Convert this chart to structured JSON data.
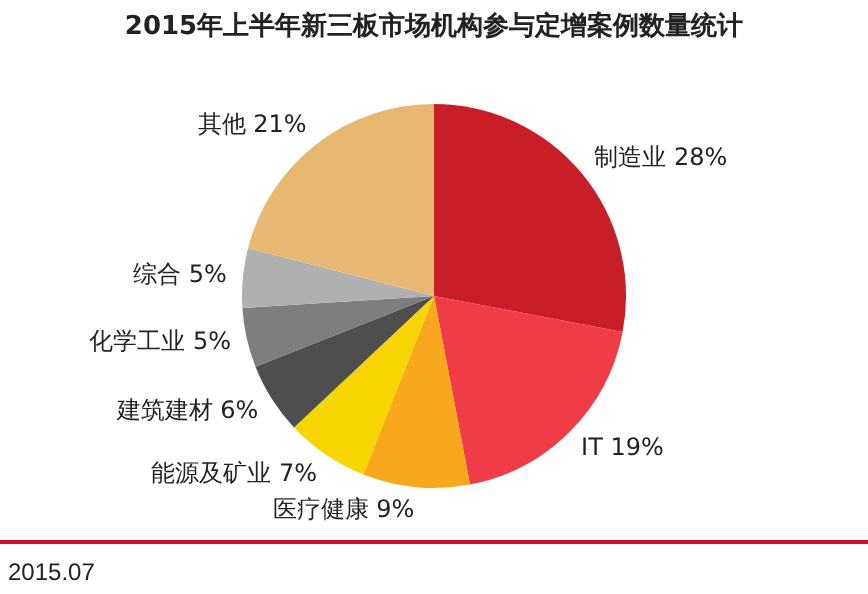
{
  "chart_data": {
    "type": "pie",
    "title": "2015年上半年新三板市场机构参与定增案例数量统计",
    "categories": [
      "制造业",
      "IT",
      "医疗健康",
      "能源及矿业",
      "建筑建材",
      "化学工业",
      "综合",
      "其他"
    ],
    "values": [
      28,
      19,
      9,
      7,
      6,
      5,
      5,
      21
    ],
    "value_labels": [
      "28%",
      "19%",
      "9%",
      "7%",
      "6%",
      "5%",
      "5%",
      "21%"
    ],
    "colors": [
      "#c81e28",
      "#f03c46",
      "#f8a81c",
      "#f8d400",
      "#4e4e4e",
      "#7e7e7e",
      "#b0b0b0",
      "#e6b872"
    ],
    "legend": false,
    "annotations": [
      "2015.07"
    ]
  }
}
